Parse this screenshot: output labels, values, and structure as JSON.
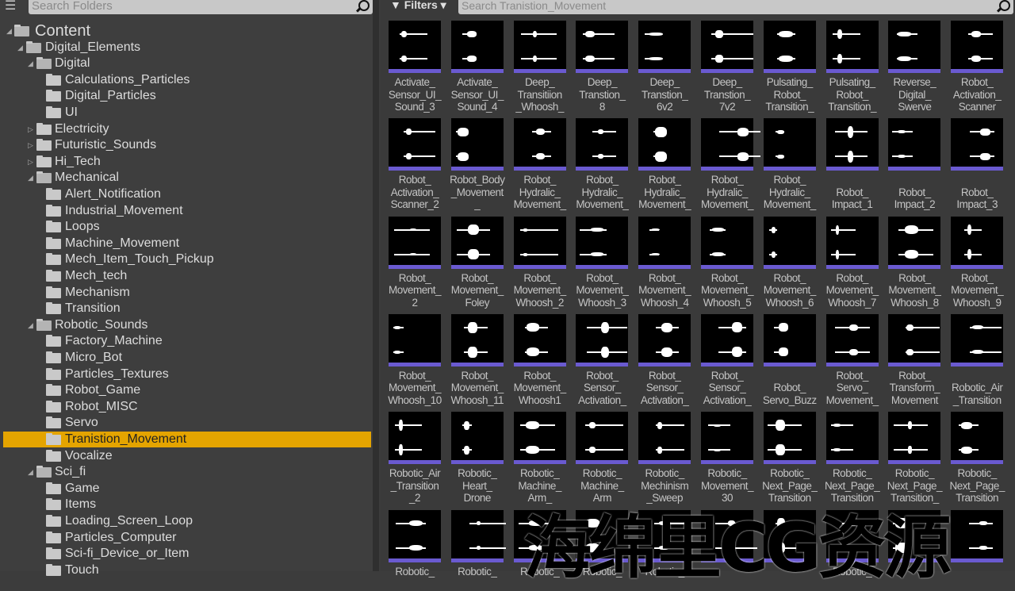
{
  "left_panel": {
    "search_placeholder": "Search Folders",
    "tree": [
      {
        "label": "Content",
        "level": 0,
        "expanded": true
      },
      {
        "label": "Digital_Elements",
        "level": 1,
        "expanded": true
      },
      {
        "label": "Digital",
        "level": 2,
        "expanded": true
      },
      {
        "label": "Calculations_Particles",
        "level": 3
      },
      {
        "label": "Digital_Particles",
        "level": 3
      },
      {
        "label": "UI",
        "level": 3
      },
      {
        "label": "Electricity",
        "level": 2,
        "expanded": false
      },
      {
        "label": "Futuristic_Sounds",
        "level": 2,
        "expanded": false
      },
      {
        "label": "Hi_Tech",
        "level": 2,
        "expanded": false
      },
      {
        "label": "Mechanical",
        "level": 2,
        "expanded": true
      },
      {
        "label": "Alert_Notification",
        "level": 3
      },
      {
        "label": "Industrial_Movement",
        "level": 3
      },
      {
        "label": "Loops",
        "level": 3
      },
      {
        "label": "Machine_Movement",
        "level": 3
      },
      {
        "label": "Mech_Item_Touch_Pickup",
        "level": 3
      },
      {
        "label": "Mech_tech",
        "level": 3
      },
      {
        "label": "Mechanism",
        "level": 3
      },
      {
        "label": "Transition",
        "level": 3
      },
      {
        "label": "Robotic_Sounds",
        "level": 2,
        "expanded": true
      },
      {
        "label": "Factory_Machine",
        "level": 3
      },
      {
        "label": "Micro_Bot",
        "level": 3
      },
      {
        "label": "Particles_Textures",
        "level": 3
      },
      {
        "label": "Robot_Game",
        "level": 3
      },
      {
        "label": "Robot_MISC",
        "level": 3
      },
      {
        "label": "Servo",
        "level": 3
      },
      {
        "label": "Tranistion_Movement",
        "level": 3,
        "selected": true
      },
      {
        "label": "Vocalize",
        "level": 3
      },
      {
        "label": "Sci_fi",
        "level": 2,
        "expanded": true
      },
      {
        "label": "Game",
        "level": 3
      },
      {
        "label": "Items",
        "level": 3
      },
      {
        "label": "Loading_Screen_Loop",
        "level": 3
      },
      {
        "label": "Particles_Computer",
        "level": 3
      },
      {
        "label": "Sci-fi_Device_or_Item",
        "level": 3
      },
      {
        "label": "Touch",
        "level": 3
      }
    ]
  },
  "right_panel": {
    "filters_label": "Filters",
    "search_placeholder": "Search Tranistion_Movement",
    "accent_color": "#6a5ad0",
    "selection_color": "#e4a400",
    "assets": [
      "Activate_\nSensor_UI_\nSound_3",
      "Activate_\nSensor_UI_\nSound_4",
      "Deep_\nTransitiion\n_Whoosh_",
      "Deep_\nTranstion_\n8",
      "Deep_\nTranstion_\n6v2",
      "Deep_\nTranstion_\n7v2",
      "Pulsating_\nRobot_\nTransition_",
      "Pulsating_\nRobot_\nTransition_",
      "Reverse_\nDigital_\nSwerve",
      "Robot_\nActivation_\nScanner",
      "Robot_\nActivation_\nScanner_2",
      "Robot_Body\n_Movement\n_",
      "Robot_\nHydralic_\nMovement_",
      "Robot_\nHydralic_\nMovement_",
      "Robot_\nHydralic_\nMovement_",
      "Robot_\nHydralic_\nMovement_",
      "Robot_\nHydralic_\nMovement_",
      "\nRobot_\nImpact_1",
      "\nRobot_\nImpact_2",
      "\nRobot_\nImpact_3",
      "Robot_\nMovement_\n2",
      "Robot_\nMovement_\nFoley",
      "Robot_\nMovement_\nWhoosh_2",
      "Robot_\nMovement_\nWhoosh_3",
      "Robot_\nMovement_\nWhoosh_4",
      "Robot_\nMovement_\nWhoosh_5",
      "Robot_\nMovement_\nWhoosh_6",
      "Robot_\nMovement_\nWhoosh_7",
      "Robot_\nMovement_\nWhoosh_8",
      "Robot_\nMovement_\nWhoosh_9",
      "Robot_\nMovement_\nWhoosh_10",
      "Robot_\nMovement_\nWhoosh_11",
      "Robot_\nMovement_\nWhoosh1",
      "Robot_\nSensor_\nActivation_",
      "Robot_\nSensor_\nActivation_",
      "Robot_\nSensor_\nActivation_",
      "\nRobot_\nServo_Buzz",
      "Robot_\nServo_\nMovement_",
      "Robot_\nTransform_\nMovement",
      "\nRobotic_Air\n_Transition",
      "Robotic_Air\n_Transition\n_2",
      "Robotic_\nHeart_\nDrone",
      "Robotic_\nMachine_\nArm_",
      "Robotic_\nMachine_\nArm",
      "Robotic_\nMechinism\n_Sweep",
      "Robotic_\nMovement_\n30",
      "Robotic_\nNext_Page_\nTransition",
      "Robotic_\nNext_Page_\nTransition",
      "Robotic_\nNext_Page_\nTransition_",
      "Robotic_\nNext_Page_\nTransition",
      "Robotic_",
      "Robotic_",
      "Robotic_",
      "Robotic_",
      "Robotic_",
      "",
      "",
      "Robotic_",
      "",
      ""
    ]
  },
  "watermark": "海绵里CG资源"
}
